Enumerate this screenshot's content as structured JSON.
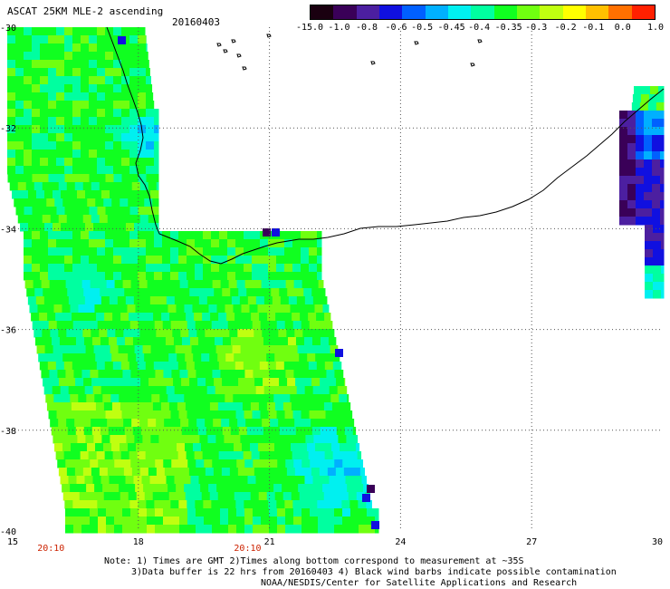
{
  "header": {
    "title": "ASCAT 25KM MLE-2 ascending",
    "date": "20160403"
  },
  "colorbar": {
    "labels": [
      "-15.0",
      "-1.0",
      "-0.8",
      "-0.6",
      "-0.5",
      "-0.45",
      "-0.4",
      "-0.35",
      "-0.3",
      "-0.2",
      "-0.1",
      "0.0",
      "1.0"
    ],
    "colors": [
      "#1a0010",
      "#3a0058",
      "#4c1fa0",
      "#1010e0",
      "#0060ff",
      "#00b0ff",
      "#00f0f0",
      "#00ffa0",
      "#10ff20",
      "#70ff10",
      "#c0ff10",
      "#ffff00",
      "#ffc000",
      "#ff7000",
      "#ff2000"
    ]
  },
  "map": {
    "lat_labels": [
      "-30",
      "-32",
      "-34",
      "-36",
      "-38",
      "-40"
    ],
    "lon_labels": [
      "15",
      "18",
      "21",
      "24",
      "27",
      "30"
    ],
    "time_labels": [
      {
        "text": "20:10",
        "lon": 16.0
      },
      {
        "text": "20:10",
        "lon": 20.5
      }
    ],
    "colors": {
      "land": "#ffffff",
      "gridline": "#555555",
      "coastline": "#000000",
      "time_label": "#cc2200"
    }
  },
  "notes": [
    "Note: 1) Times are GMT 2)Times along bottom correspond to measurement at ~35S",
    "3)Data buffer is 22 hrs from 20160403 4) Black wind barbs indicate possible contamination",
    "NOAA/NESDIS/Center for Satellite Applications and Research"
  ]
}
